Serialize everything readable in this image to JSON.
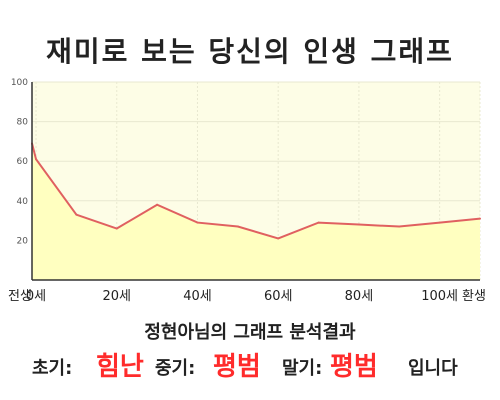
{
  "title": "재미로 보는 당신의 인생 그래프",
  "summary": "정현아님의 그래프 분석결과",
  "result": {
    "early_label": "초기:",
    "early_value": "힘난",
    "mid_label": "중기:",
    "mid_value": "평범",
    "late_label": "말기:",
    "late_value": "평범",
    "suffix": "입니다"
  },
  "colors": {
    "line": "#e06060",
    "fill": "#ffffc0",
    "plot_bg": "#fdfde6",
    "grid": "#e8e8d0",
    "highlight": "#ff2b2b"
  },
  "chart_data": {
    "type": "area",
    "title": "",
    "xlabel": "",
    "ylabel": "",
    "ylim": [
      0,
      100
    ],
    "yticks": [
      20,
      40,
      60,
      80,
      100
    ],
    "x": [
      -1,
      0,
      10,
      20,
      30,
      40,
      50,
      60,
      70,
      80,
      90,
      100,
      110
    ],
    "xtick_labels": [
      "전생",
      "0세",
      "20세",
      "40세",
      "60세",
      "80세",
      "100세",
      "환생"
    ],
    "xtick_positions": [
      -1,
      0,
      20,
      40,
      60,
      80,
      100,
      110
    ],
    "series": [
      {
        "values": [
          69,
          61,
          33,
          26,
          38,
          29,
          27,
          21,
          29,
          28,
          27,
          29,
          31
        ]
      }
    ],
    "grid": true
  }
}
